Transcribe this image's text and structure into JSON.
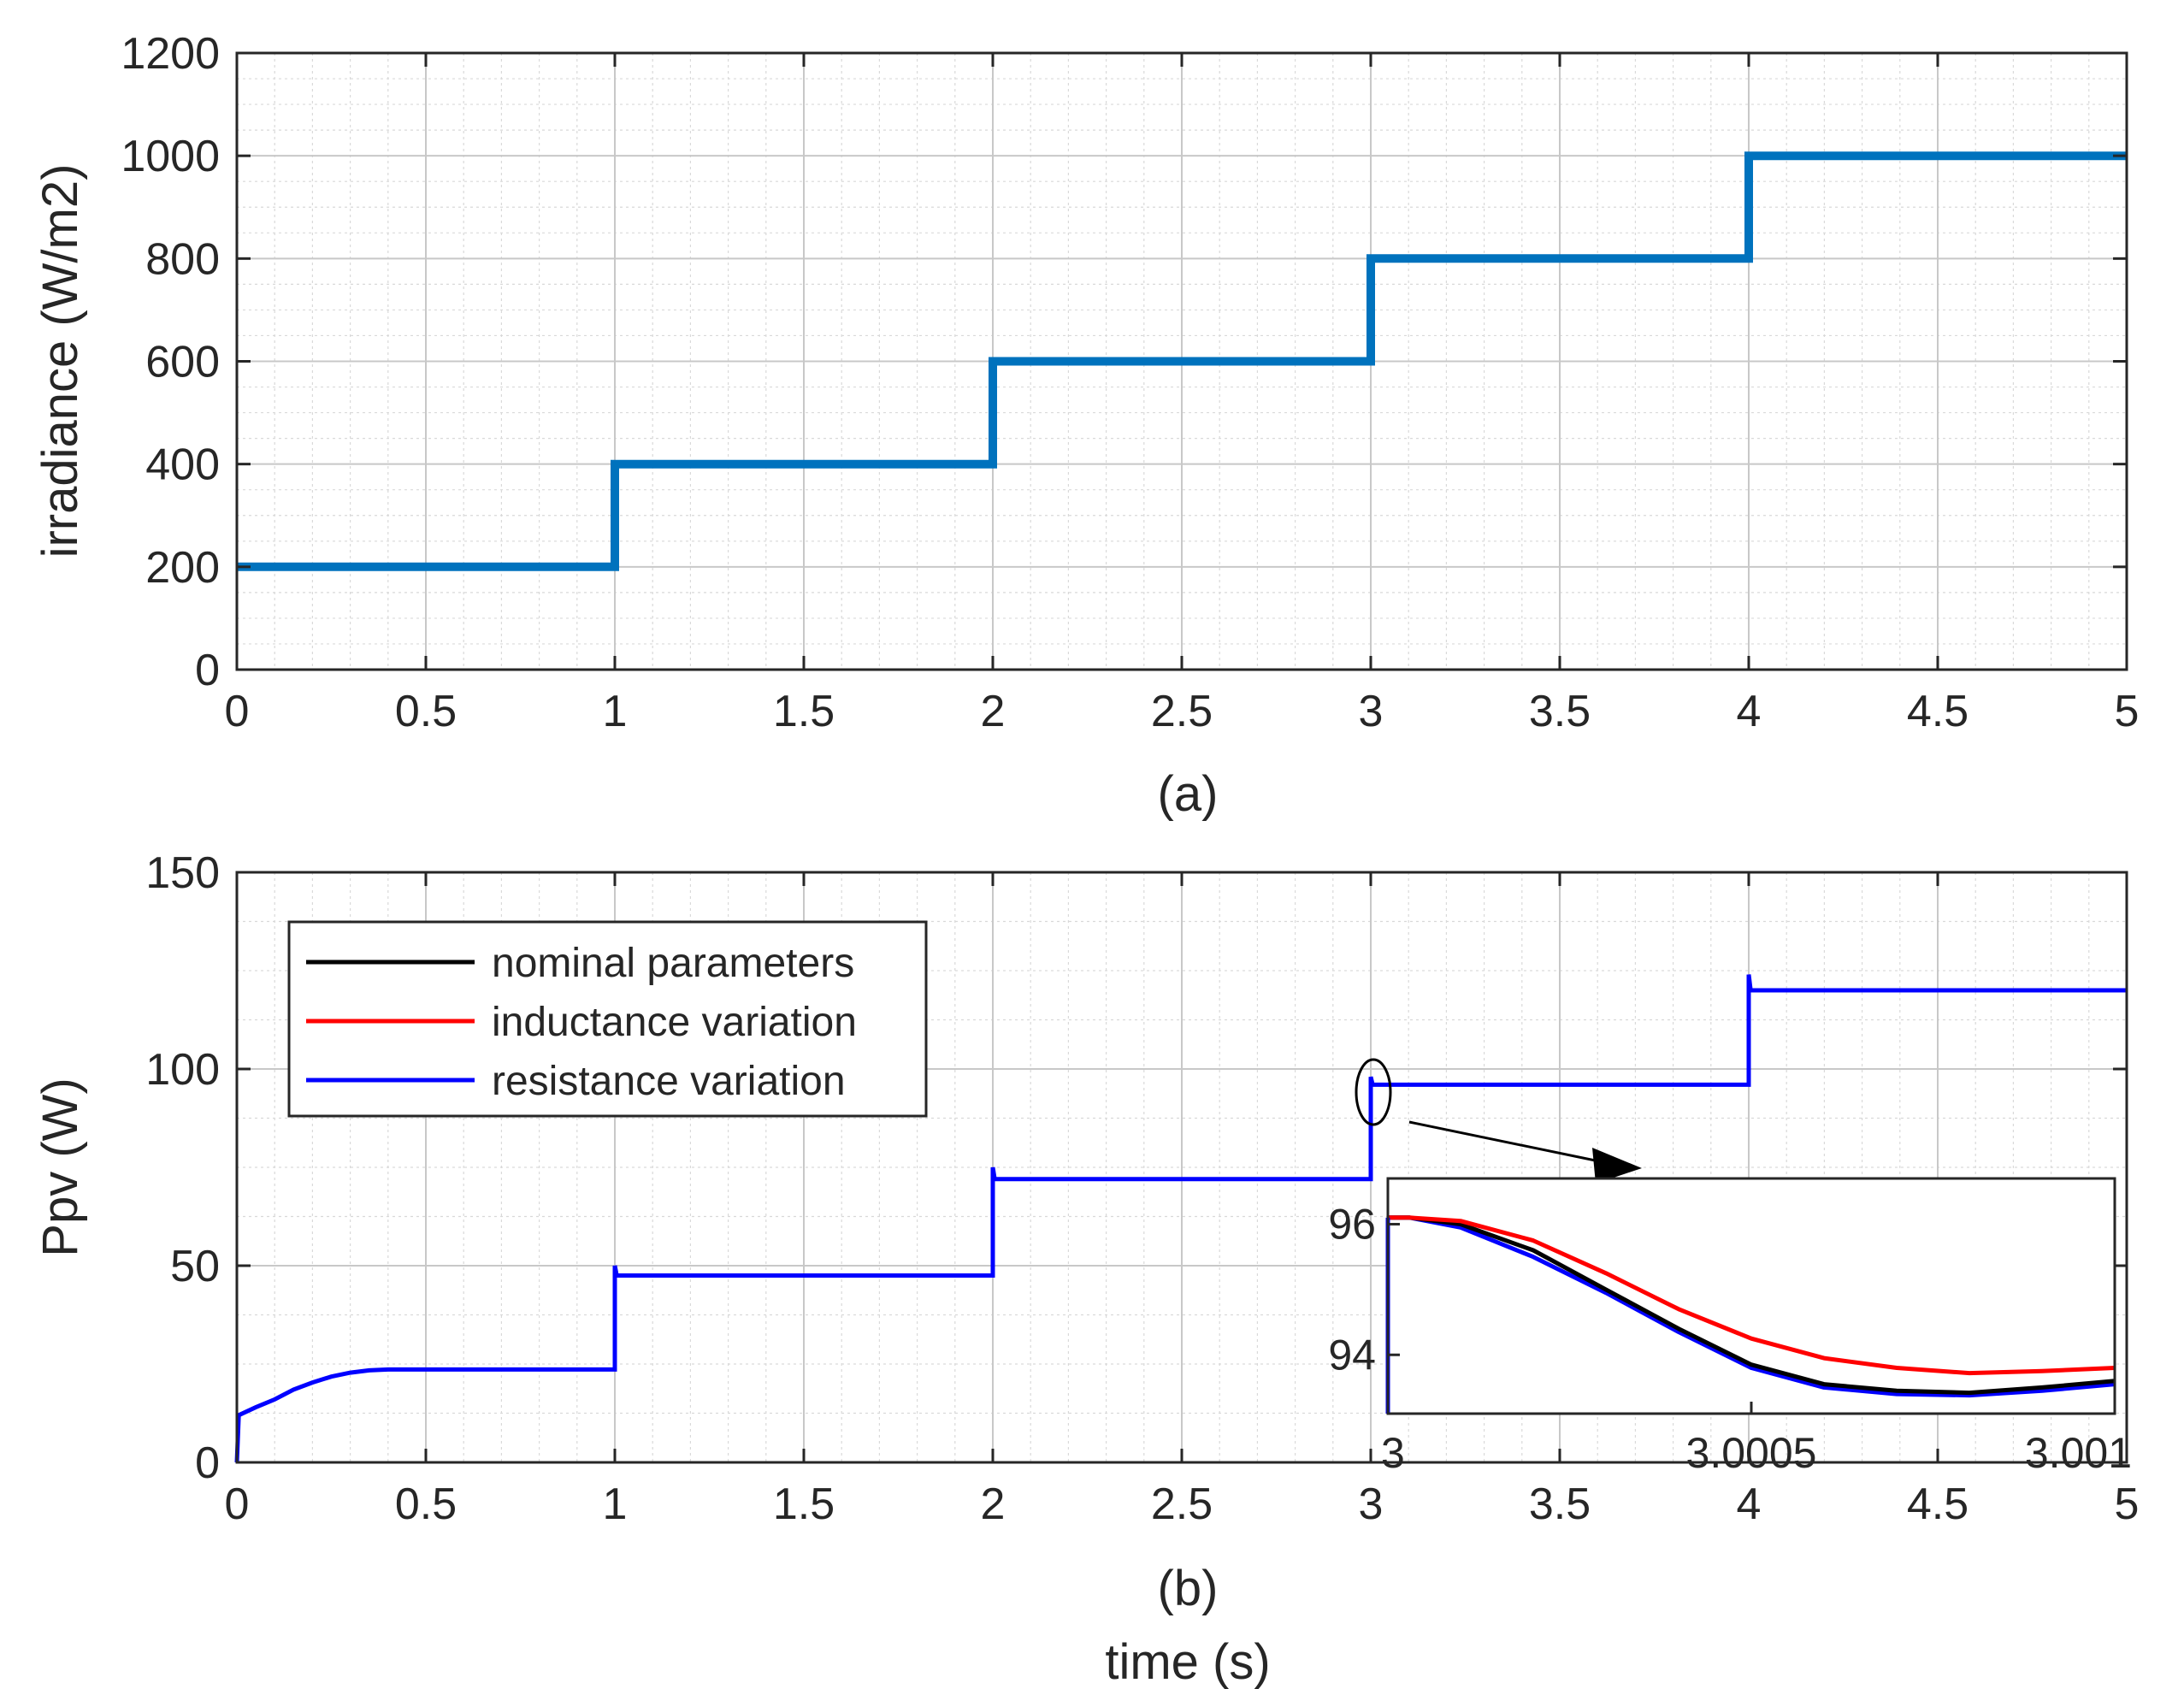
{
  "chart_data": [
    {
      "type": "line",
      "panel": "(a)",
      "xlabel": "",
      "ylabel": "irradiance (W/m2)",
      "caption": "(a)",
      "xlim": [
        0,
        5
      ],
      "ylim": [
        0,
        1200
      ],
      "xticks": [
        0,
        0.5,
        1,
        1.5,
        2,
        2.5,
        3,
        3.5,
        4,
        4.5,
        5
      ],
      "xtick_labels": [
        "0",
        "0.5",
        "1",
        "1.5",
        "2",
        "2.5",
        "3",
        "3.5",
        "4",
        "4.5",
        "5"
      ],
      "yticks": [
        0,
        200,
        400,
        600,
        800,
        1000,
        1200
      ],
      "ytick_labels": [
        "0",
        "200",
        "400",
        "600",
        "800",
        "1000",
        "1200"
      ],
      "grid": true,
      "series": [
        {
          "name": "irradiance",
          "color": "#0072BD",
          "x": [
            0,
            1,
            1,
            2,
            2,
            3,
            3,
            4,
            4,
            5
          ],
          "y": [
            200,
            200,
            400,
            400,
            600,
            600,
            800,
            800,
            1000,
            1000
          ]
        }
      ]
    },
    {
      "type": "line",
      "panel": "(b)",
      "xlabel": "time (s)",
      "ylabel": "Ppv (W)",
      "caption": "(b)",
      "xlim": [
        0,
        5
      ],
      "ylim": [
        0,
        150
      ],
      "xticks": [
        0,
        0.5,
        1,
        1.5,
        2,
        2.5,
        3,
        3.5,
        4,
        4.5,
        5
      ],
      "xtick_labels": [
        "0",
        "0.5",
        "1",
        "1.5",
        "2",
        "2.5",
        "3",
        "3.5",
        "4",
        "4.5",
        "5"
      ],
      "yticks": [
        0,
        50,
        100,
        150
      ],
      "ytick_labels": [
        "0",
        "50",
        "100",
        "150"
      ],
      "grid": true,
      "legend": {
        "location": "top-left",
        "entries": [
          {
            "label": "nominal parameters",
            "color": "#000000"
          },
          {
            "label": "inductance variation",
            "color": "#FF0000"
          },
          {
            "label": "resistance variation",
            "color": "#0000FF"
          }
        ]
      },
      "series": [
        {
          "name": "resistance variation",
          "color": "#0000FF",
          "x": [
            0,
            0.005,
            0.05,
            0.1,
            0.15,
            0.2,
            0.25,
            0.3,
            0.35,
            0.4,
            0.5,
            0.7,
            1.0,
            1.0,
            1.005,
            1.02,
            1.5,
            2.0,
            2.0,
            2.005,
            2.02,
            2.5,
            3.0,
            3.0,
            3.005,
            3.02,
            3.5,
            4.0,
            4.0,
            4.005,
            4.02,
            4.5,
            5.0
          ],
          "y": [
            0,
            12,
            14,
            16,
            18.5,
            20.3,
            21.8,
            22.8,
            23.4,
            23.6,
            23.6,
            23.6,
            23.6,
            50,
            47.5,
            47.5,
            47.5,
            47.5,
            75,
            72,
            72,
            72,
            72,
            98,
            96,
            96,
            96,
            96,
            124,
            120,
            120,
            120,
            120
          ]
        }
      ],
      "annotation": {
        "type": "ellipse-zoom",
        "x": 3.0,
        "y": 96
      }
    },
    {
      "type": "line",
      "panel": "inset",
      "xlim": [
        3,
        3.001
      ],
      "ylim": [
        93.1,
        96.7
      ],
      "xticks": [
        3,
        3.0005,
        3.001
      ],
      "xtick_labels": [
        "3",
        "3.0005",
        "3.001"
      ],
      "yticks": [
        94,
        96
      ],
      "ytick_labels": [
        "94",
        "96"
      ],
      "series": [
        {
          "name": "nominal parameters",
          "color": "#000000",
          "x": [
            3.0,
            3.00003,
            3.0001,
            3.0002,
            3.0003,
            3.0004,
            3.0005,
            3.0006,
            3.0007,
            3.0008,
            3.0009,
            3.001
          ],
          "y": [
            96.1,
            96.1,
            96.0,
            95.6,
            95.0,
            94.4,
            93.85,
            93.55,
            93.45,
            93.42,
            93.5,
            93.6
          ]
        },
        {
          "name": "inductance variation",
          "color": "#FF0000",
          "x": [
            3.0,
            3.00003,
            3.0001,
            3.0002,
            3.0003,
            3.0004,
            3.0005,
            3.0006,
            3.0007,
            3.0008,
            3.0009,
            3.001
          ],
          "y": [
            96.1,
            96.1,
            96.05,
            95.75,
            95.25,
            94.7,
            94.25,
            93.95,
            93.8,
            93.72,
            93.75,
            93.8
          ]
        },
        {
          "name": "resistance variation",
          "color": "#0000FF",
          "x": [
            3.0,
            3.00003,
            3.0001,
            3.0002,
            3.0003,
            3.0004,
            3.0005,
            3.0006,
            3.0007,
            3.0008,
            3.0009,
            3.001
          ],
          "y": [
            96.1,
            96.1,
            95.95,
            95.5,
            94.95,
            94.35,
            93.8,
            93.5,
            93.4,
            93.38,
            93.45,
            93.55
          ]
        }
      ]
    }
  ]
}
